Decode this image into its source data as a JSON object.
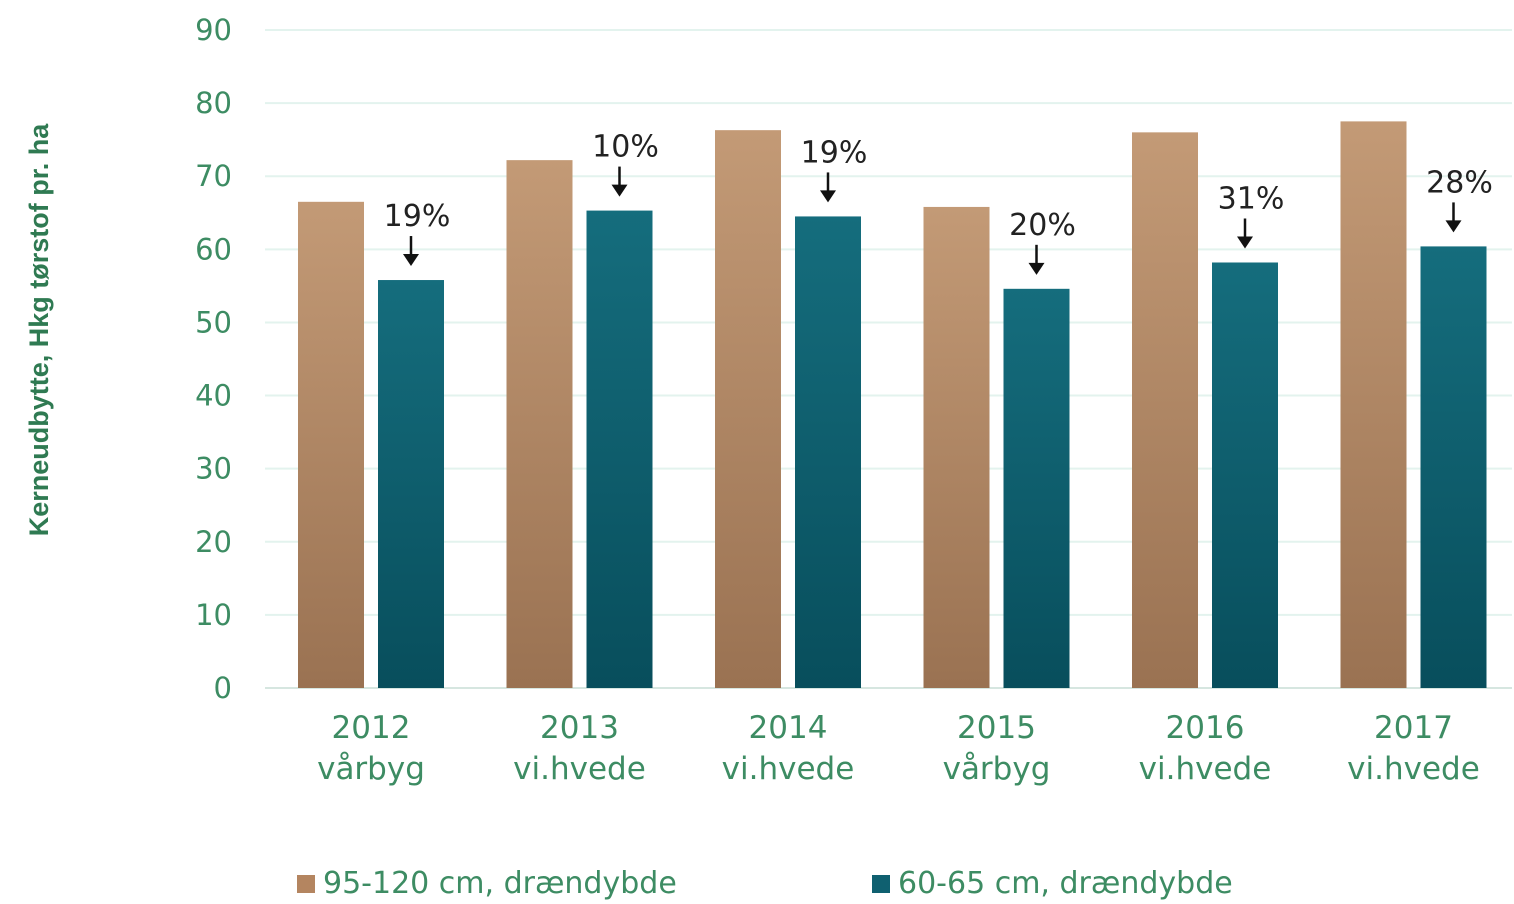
{
  "chart_data": {
    "type": "bar",
    "title": "",
    "ylabel": "Kerneudbytte, Hkg tørstof pr. ha",
    "xlabel": "",
    "ylim": [
      0,
      90
    ],
    "yticks": [
      0,
      10,
      20,
      30,
      40,
      50,
      60,
      70,
      80,
      90
    ],
    "grid": true,
    "legend_position": "bottom",
    "categories": [
      {
        "year": "2012",
        "crop": "vårbyg"
      },
      {
        "year": "2013",
        "crop": "vi.hvede"
      },
      {
        "year": "2014",
        "crop": "vi.hvede"
      },
      {
        "year": "2015",
        "crop": "vårbyg"
      },
      {
        "year": "2016",
        "crop": "vi.hvede"
      },
      {
        "year": "2017",
        "crop": "vi.hvede"
      }
    ],
    "series": [
      {
        "name": "95-120 cm, drændybde",
        "color": "#b48560",
        "values": [
          66.5,
          72.2,
          76.3,
          65.8,
          76.0,
          77.5
        ]
      },
      {
        "name": "60-65 cm, drændybde",
        "color": "#0f6070",
        "values": [
          55.8,
          65.3,
          64.5,
          54.6,
          58.2,
          60.4
        ]
      }
    ],
    "annotations": [
      "19%",
      "10%",
      "19%",
      "20%",
      "31%",
      "28%"
    ]
  }
}
